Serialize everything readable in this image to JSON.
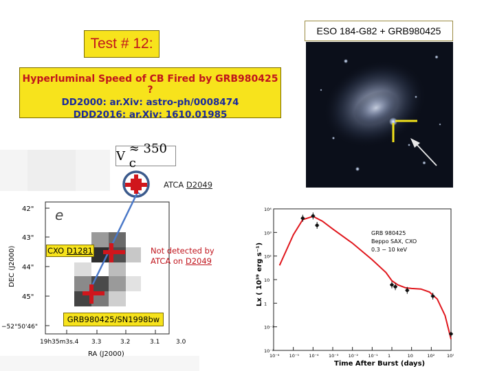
{
  "slide": {
    "test_label": "Test # 12:",
    "title_line1": "Hyperluminal  Speed of CB Fired by GRB980425 ?",
    "title_line2": "DD2000: ar.Xiv: astro-ph/0008474",
    "title_line3": "DDD2016:  ar.Xiv: 1610.01985"
  },
  "galaxy_panel": {
    "caption": "ESO 184-G82 + GRB980425"
  },
  "radio_panel": {
    "velocity_symbol": "V",
    "velocity_value": "≈ 350 c",
    "atca_prefix": "ATCA  ",
    "atca_day": "D2049",
    "cxo_prefix": "CXO ",
    "cxo_day": "D1281",
    "not_detected_line1": "Not detected by",
    "not_detected_line2": "ATCA on ",
    "not_detected_day": "D2049",
    "grb_label": "GRB980425/SN1998bw",
    "panel_letter": "e",
    "y_axis_title": "DEC (J2000)",
    "x_axis_title": "RA (J2000)",
    "y_ticks": [
      "42\"",
      "43\"",
      "44\"",
      "45\"",
      "−52°50'46\""
    ],
    "x_ticks": [
      "19h35m3s.4",
      "3.3",
      "3.2",
      "3.1",
      "3.0"
    ],
    "colors": {
      "cross": "#d0161c",
      "arrow": "#4a78c8",
      "circle": "#3b5a8c"
    }
  },
  "light_curve": {
    "legend_line1": "GRB 980425",
    "legend_line2": "Beppo  SAX, CXO",
    "legend_line3": "0.3 − 10 keV",
    "y_axis_title": "Lx ( 10³⁹ erg s⁻¹)",
    "x_axis_title": "Time After Burst (days)",
    "x_tick_labels": [
      "10⁻⁶",
      "10⁻⁵",
      "10⁻⁴",
      "10⁻³",
      "10⁻²",
      "10⁻¹",
      "1",
      "10",
      "10²",
      "10³"
    ],
    "y_tick_labels": [
      "10⁴",
      "10³",
      "10²",
      "10",
      "1",
      "10⁻¹",
      "10⁻²"
    ],
    "curve_color": "#e0161c"
  },
  "chart_data": {
    "type": "line",
    "title": "",
    "xlabel": "Time After Burst (days)",
    "ylabel": "Lx ( 10³⁹ erg s⁻¹)",
    "x_scale": "log",
    "y_scale": "log",
    "xlim": [
      1e-06,
      1000.0
    ],
    "ylim": [
      0.01,
      10000
    ],
    "series": [
      {
        "name": "GRB 980425",
        "x": [
          3e-05,
          0.0001,
          0.00016,
          1.0,
          1.5,
          6.0,
          120.0,
          1000.0
        ],
        "y": [
          4000,
          5000,
          2000,
          6.0,
          5.0,
          3.5,
          2.0,
          0.05
        ]
      }
    ],
    "model_curve": {
      "x": [
        2e-06,
        1e-05,
        3e-05,
        0.0001,
        0.0003,
        0.001,
        0.01,
        0.1,
        0.5,
        1,
        2,
        5,
        10,
        30,
        80,
        200,
        500,
        1000
      ],
      "y": [
        40,
        800,
        3500,
        4800,
        3000,
        1400,
        350,
        70,
        20,
        9,
        6,
        4.5,
        4.2,
        4.0,
        3.0,
        1.5,
        0.3,
        0.03
      ]
    }
  }
}
